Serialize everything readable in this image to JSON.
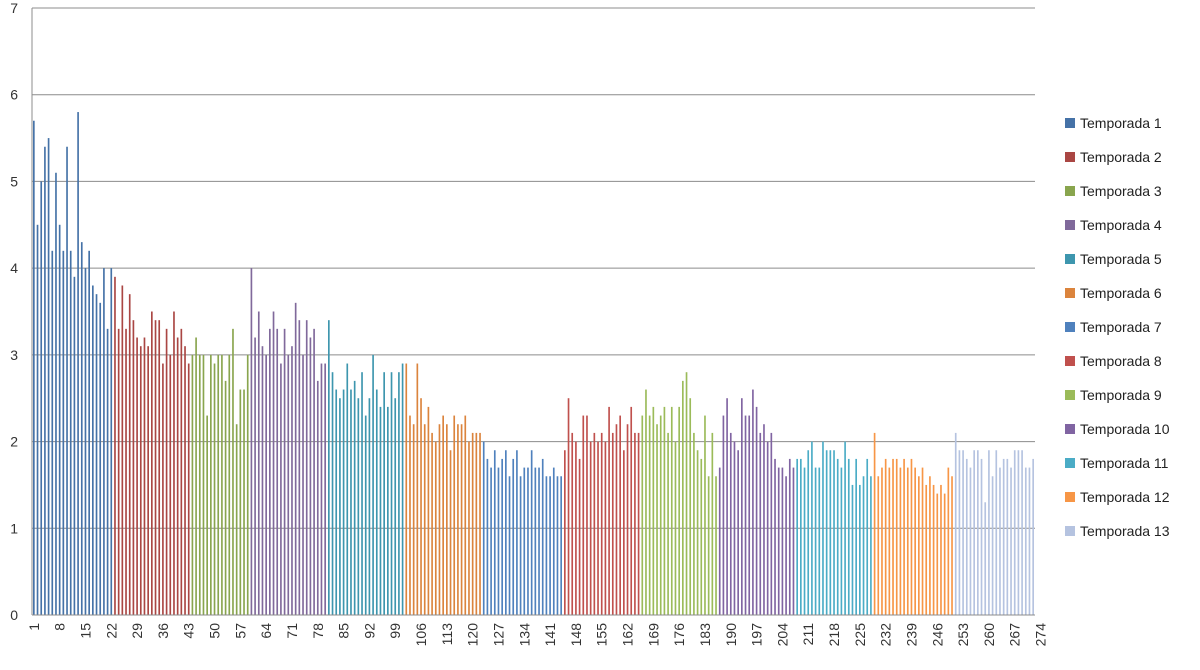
{
  "chart_data": {
    "type": "bar",
    "title": "",
    "xlabel": "",
    "ylabel": "",
    "ylim": [
      0,
      7
    ],
    "yticks": [
      "0",
      "1",
      "2",
      "3",
      "4",
      "5",
      "6",
      "7"
    ],
    "x_tick_labels": [
      "1",
      "8",
      "15",
      "22",
      "29",
      "36",
      "43",
      "50",
      "57",
      "64",
      "71",
      "78",
      "85",
      "92",
      "99",
      "106",
      "113",
      "120",
      "127",
      "134",
      "141",
      "148",
      "155",
      "162",
      "169",
      "176",
      "183",
      "190",
      "197",
      "204",
      "211",
      "218",
      "225",
      "232",
      "239",
      "246",
      "253",
      "260",
      "267",
      "274"
    ],
    "grid": true,
    "legend_position": "right",
    "series": [
      {
        "name": "Temporada 1",
        "color": "#4572a7",
        "start": 1,
        "values": [
          5.7,
          4.5,
          5.0,
          5.4,
          5.5,
          4.2,
          5.1,
          4.5,
          4.2,
          5.4,
          4.2,
          3.9,
          5.8,
          4.3,
          4.0,
          4.2,
          3.8,
          3.7,
          3.6,
          4.0,
          3.3,
          4.0
        ]
      },
      {
        "name": "Temporada 2",
        "color": "#aa4643",
        "start": 23,
        "values": [
          3.9,
          3.3,
          3.8,
          3.3,
          3.7,
          3.4,
          3.2,
          3.1,
          3.2,
          3.1,
          3.5,
          3.4,
          3.4,
          2.9,
          3.3,
          3.0,
          3.5,
          3.2,
          3.3,
          3.1,
          2.9
        ]
      },
      {
        "name": "Temporada 3",
        "color": "#89a54e",
        "start": 44,
        "values": [
          3.0,
          3.2,
          3.0,
          3.0,
          2.3,
          3.0,
          2.9,
          3.0,
          3.0,
          2.7,
          3.0,
          3.3,
          2.2,
          2.6,
          2.6,
          3.0
        ]
      },
      {
        "name": "Temporada 4",
        "color": "#80699b",
        "start": 60,
        "values": [
          4.0,
          3.2,
          3.5,
          3.1,
          3.0,
          3.3,
          3.5,
          3.3,
          2.9,
          3.3,
          3.0,
          3.1,
          3.6,
          3.4,
          3.0,
          3.4,
          3.2,
          3.3,
          2.7,
          2.9,
          2.9
        ]
      },
      {
        "name": "Temporada 5",
        "color": "#3d96ae",
        "start": 81,
        "values": [
          3.4,
          2.8,
          2.6,
          2.5,
          2.6,
          2.9,
          2.6,
          2.7,
          2.5,
          2.8,
          2.3,
          2.5,
          3.0,
          2.6,
          2.4,
          2.8,
          2.4,
          2.8,
          2.5,
          2.8,
          2.9
        ]
      },
      {
        "name": "Temporada 6",
        "color": "#db843d",
        "start": 102,
        "values": [
          2.9,
          2.3,
          2.2,
          2.9,
          2.5,
          2.2,
          2.4,
          2.1,
          2.0,
          2.2,
          2.3,
          2.2,
          1.9,
          2.3,
          2.2,
          2.2,
          2.3,
          2.0,
          2.1,
          2.1,
          2.1
        ]
      },
      {
        "name": "Temporada 7",
        "color": "#4f81bd",
        "start": 123,
        "values": [
          2.0,
          1.8,
          1.7,
          1.9,
          1.7,
          1.8,
          1.9,
          1.6,
          1.8,
          1.9,
          1.6,
          1.7,
          1.7,
          1.9,
          1.7,
          1.7,
          1.8,
          1.6,
          1.6,
          1.7,
          1.6,
          1.6
        ]
      },
      {
        "name": "Temporada 8",
        "color": "#c0504d",
        "start": 145,
        "values": [
          1.9,
          2.5,
          2.1,
          2.0,
          1.8,
          2.3,
          2.3,
          2.0,
          2.1,
          2.0,
          2.1,
          2.0,
          2.4,
          2.1,
          2.2,
          2.3,
          1.9,
          2.2,
          2.4,
          2.1,
          2.1
        ]
      },
      {
        "name": "Temporada 9",
        "color": "#9bbb59",
        "start": 166,
        "values": [
          2.3,
          2.6,
          2.3,
          2.4,
          2.2,
          2.3,
          2.4,
          2.1,
          2.4,
          2.0,
          2.4,
          2.7,
          2.8,
          2.5,
          2.1,
          1.9,
          1.8,
          2.3,
          1.6,
          2.1,
          1.6
        ]
      },
      {
        "name": "Temporada 10",
        "color": "#8064a2",
        "start": 187,
        "values": [
          1.7,
          2.3,
          2.5,
          2.1,
          2.0,
          1.9,
          2.5,
          2.3,
          2.3,
          2.6,
          2.4,
          2.1,
          2.2,
          2.0,
          2.1,
          1.8,
          1.7,
          1.7,
          1.6,
          1.8,
          1.7
        ]
      },
      {
        "name": "Temporada 11",
        "color": "#4bacc6",
        "start": 208,
        "values": [
          1.8,
          1.8,
          1.7,
          1.9,
          2.0,
          1.7,
          1.7,
          2.0,
          1.9,
          1.9,
          1.9,
          1.8,
          1.7,
          2.0,
          1.8,
          1.5,
          1.8,
          1.5,
          1.6,
          1.8,
          1.6
        ]
      },
      {
        "name": "Temporada 12",
        "color": "#f79646",
        "start": 229,
        "values": [
          2.1,
          1.6,
          1.7,
          1.8,
          1.7,
          1.8,
          1.8,
          1.7,
          1.8,
          1.7,
          1.8,
          1.7,
          1.6,
          1.7,
          1.5,
          1.6,
          1.5,
          1.4,
          1.5,
          1.4,
          1.7,
          1.6
        ]
      },
      {
        "name": "Temporada 13",
        "color": "#b5c3e0",
        "start": 251,
        "values": [
          2.1,
          1.9,
          1.9,
          1.8,
          1.7,
          1.9,
          1.9,
          1.8,
          1.3,
          1.9,
          1.6,
          1.9,
          1.7,
          1.8,
          1.8,
          1.7,
          1.9,
          1.9,
          1.9,
          1.7,
          1.7,
          1.8
        ]
      }
    ]
  }
}
